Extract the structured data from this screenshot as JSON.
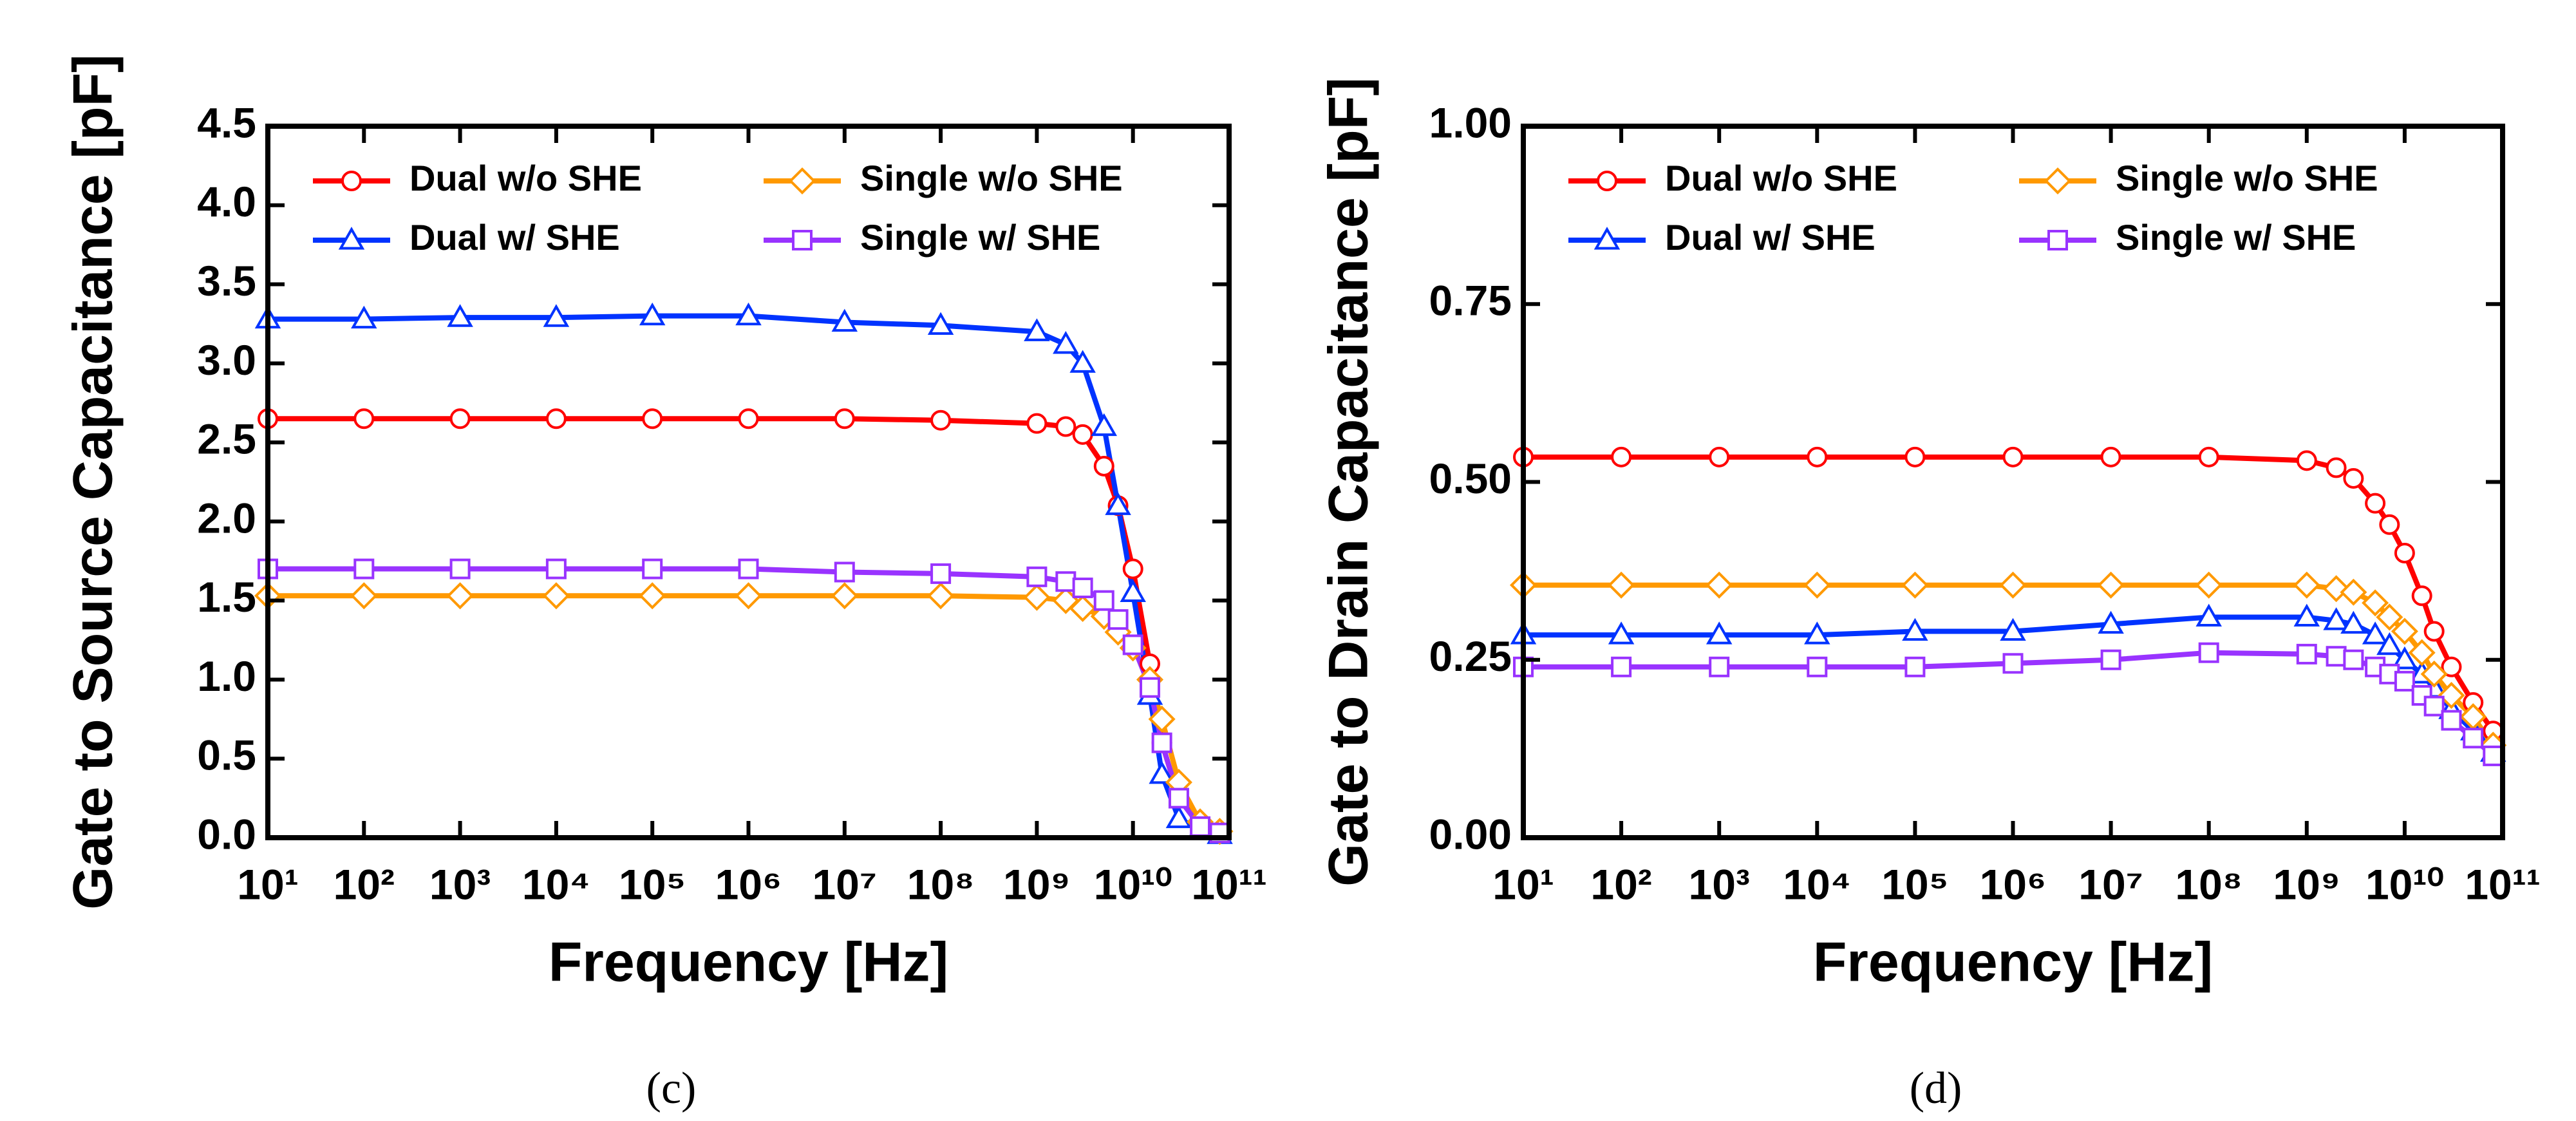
{
  "chart_data": [
    {
      "type": "line",
      "caption": "(c)",
      "xlabel": "Frequency [Hz]",
      "ylabel": "Gate to Source Capacitance [pF]",
      "xscale": "log",
      "xlim": [
        10,
        100000000000
      ],
      "xticks": [
        {
          "value": 10,
          "label": "10¹"
        },
        {
          "value": 100,
          "label": "10²"
        },
        {
          "value": 1000,
          "label": "10³"
        },
        {
          "value": 10000,
          "label": "10⁴"
        },
        {
          "value": 100000,
          "label": "10⁵"
        },
        {
          "value": 1000000,
          "label": "10⁶"
        },
        {
          "value": 10000000,
          "label": "10⁷"
        },
        {
          "value": 100000000,
          "label": "10⁸"
        },
        {
          "value": 1000000000,
          "label": "10⁹"
        },
        {
          "value": 10000000000,
          "label": "10¹⁰"
        },
        {
          "value": 100000000000,
          "label": "10¹¹"
        }
      ],
      "ylim": [
        0,
        4.5
      ],
      "yticks": [
        {
          "value": 0,
          "label": "0.0"
        },
        0.5,
        {
          "value": 1,
          "label": "1.0"
        },
        1.5,
        {
          "value": 2,
          "label": "2.0"
        },
        2.5,
        {
          "value": 3,
          "label": "3.0"
        },
        3.5,
        {
          "value": 4,
          "label": "4.0"
        },
        4.5
      ],
      "x": [
        10,
        100,
        1000,
        10000,
        100000,
        1000000,
        10000000,
        100000000,
        1000000000,
        2000000000,
        3000000000,
        5000000000,
        7000000000,
        10000000000,
        15000000000,
        20000000000,
        30000000000,
        50000000000,
        80000000000
      ],
      "series": [
        {
          "name": "Dual w/o SHE",
          "color": "#ff0000",
          "marker": "circle",
          "values": [
            2.65,
            2.65,
            2.65,
            2.65,
            2.65,
            2.65,
            2.65,
            2.64,
            2.62,
            2.6,
            2.55,
            2.35,
            2.1,
            1.7,
            1.1,
            0.6,
            0.25,
            0.08,
            0.03
          ]
        },
        {
          "name": "Dual w/ SHE",
          "color": "#0033ff",
          "marker": "triangle",
          "values": [
            3.28,
            3.28,
            3.29,
            3.29,
            3.3,
            3.3,
            3.26,
            3.24,
            3.2,
            3.12,
            3.0,
            2.6,
            2.1,
            1.55,
            0.9,
            0.4,
            0.12,
            0.05,
            0.02
          ]
        },
        {
          "name": "Single w/o SHE",
          "color": "#ff9900",
          "marker": "diamond",
          "values": [
            1.53,
            1.53,
            1.53,
            1.53,
            1.53,
            1.53,
            1.53,
            1.53,
            1.52,
            1.5,
            1.45,
            1.4,
            1.3,
            1.2,
            1.0,
            0.75,
            0.35,
            0.1,
            0.04
          ]
        },
        {
          "name": "Single w/ SHE",
          "color": "#9933ff",
          "marker": "square",
          "values": [
            1.7,
            1.7,
            1.7,
            1.7,
            1.7,
            1.7,
            1.68,
            1.67,
            1.65,
            1.62,
            1.58,
            1.5,
            1.38,
            1.22,
            0.95,
            0.6,
            0.25,
            0.07,
            0.03
          ]
        }
      ]
    },
    {
      "type": "line",
      "caption": "(d)",
      "xlabel": "Frequency [Hz]",
      "ylabel": "Gate to Drain Capacitance [pF]",
      "xscale": "log",
      "xlim": [
        10,
        100000000000
      ],
      "xticks": [
        {
          "value": 10,
          "label": "10¹"
        },
        {
          "value": 100,
          "label": "10²"
        },
        {
          "value": 1000,
          "label": "10³"
        },
        {
          "value": 10000,
          "label": "10⁴"
        },
        {
          "value": 100000,
          "label": "10⁵"
        },
        {
          "value": 1000000,
          "label": "10⁶"
        },
        {
          "value": 10000000,
          "label": "10⁷"
        },
        {
          "value": 100000000,
          "label": "10⁸"
        },
        {
          "value": 1000000000,
          "label": "10⁹"
        },
        {
          "value": 10000000000,
          "label": "10¹⁰"
        },
        {
          "value": 100000000000,
          "label": "10¹¹"
        }
      ],
      "ylim": [
        0,
        1
      ],
      "yticks": [
        {
          "value": 0,
          "label": "0.00"
        },
        0.25,
        {
          "value": 0.5,
          "label": "0.50"
        },
        0.75,
        {
          "value": 1,
          "label": "1.00"
        }
      ],
      "x": [
        10,
        100,
        1000,
        10000,
        100000,
        1000000,
        10000000,
        100000000,
        1000000000,
        2000000000,
        3000000000,
        5000000000,
        7000000000,
        10000000000,
        15000000000,
        20000000000,
        30000000000,
        50000000000,
        80000000000
      ],
      "series": [
        {
          "name": "Dual w/o SHE",
          "color": "#ff0000",
          "marker": "circle",
          "values": [
            0.535,
            0.535,
            0.535,
            0.535,
            0.535,
            0.535,
            0.535,
            0.535,
            0.53,
            0.52,
            0.505,
            0.47,
            0.44,
            0.4,
            0.34,
            0.29,
            0.24,
            0.19,
            0.15
          ]
        },
        {
          "name": "Dual w/ SHE",
          "color": "#0033ff",
          "marker": "triangle",
          "values": [
            0.285,
            0.285,
            0.285,
            0.285,
            0.29,
            0.29,
            0.3,
            0.31,
            0.31,
            0.305,
            0.3,
            0.285,
            0.27,
            0.25,
            0.23,
            0.21,
            0.18,
            0.15,
            0.12
          ]
        },
        {
          "name": "Single w/o SHE",
          "color": "#ff9900",
          "marker": "diamond",
          "values": [
            0.355,
            0.355,
            0.355,
            0.355,
            0.355,
            0.355,
            0.355,
            0.355,
            0.355,
            0.35,
            0.345,
            0.33,
            0.31,
            0.29,
            0.26,
            0.23,
            0.2,
            0.17,
            0.13
          ]
        },
        {
          "name": "Single w/ SHE",
          "color": "#9933ff",
          "marker": "square",
          "values": [
            0.24,
            0.24,
            0.24,
            0.24,
            0.24,
            0.245,
            0.25,
            0.26,
            0.258,
            0.255,
            0.25,
            0.24,
            0.23,
            0.22,
            0.2,
            0.185,
            0.165,
            0.14,
            0.115
          ]
        }
      ]
    }
  ]
}
